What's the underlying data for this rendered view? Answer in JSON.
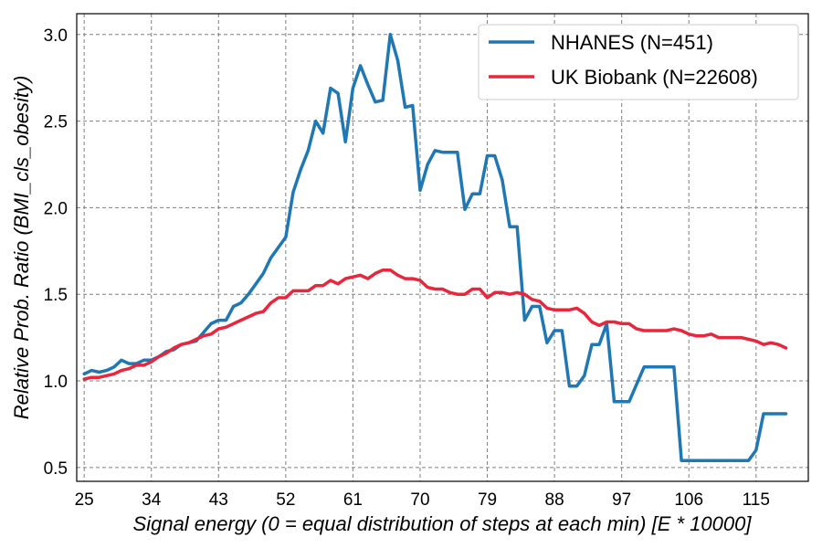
{
  "chart_data": {
    "type": "line",
    "title": "",
    "xlabel": "Signal energy (0 = equal distribution of steps at each min) [E * 10000]",
    "ylabel": "Relative Prob. Ratio (BMI_cls_obesity)",
    "xlim": [
      24,
      122
    ],
    "ylim": [
      0.42,
      3.12
    ],
    "xticks": [
      25,
      34,
      43,
      52,
      61,
      70,
      79,
      88,
      97,
      106,
      115
    ],
    "yticks": [
      0.5,
      1.0,
      1.5,
      2.0,
      2.5,
      3.0
    ],
    "ytick_labels": [
      "0.5",
      "1.0",
      "1.5",
      "2.0",
      "2.5",
      "3.0"
    ],
    "grid": true,
    "legend_position": "top-right",
    "series": [
      {
        "name": "NHANES (N=451)",
        "color": "#1f77b4",
        "x": [
          25,
          26,
          27,
          28,
          29,
          30,
          31,
          32,
          33,
          34,
          35,
          36,
          37,
          38,
          39,
          40,
          41,
          42,
          43,
          44,
          45,
          46,
          47,
          48,
          49,
          50,
          51,
          52,
          53,
          54,
          55,
          56,
          57,
          58,
          59,
          60,
          61,
          62,
          63,
          64,
          65,
          66,
          67,
          68,
          69,
          70,
          71,
          72,
          73,
          74,
          75,
          76,
          77,
          78,
          79,
          80,
          81,
          82,
          83,
          84,
          85,
          86,
          87,
          88,
          89,
          90,
          91,
          92,
          93,
          94,
          95,
          96,
          97,
          98,
          99,
          100,
          101,
          102,
          103,
          104,
          105,
          106,
          107,
          108,
          109,
          110,
          111,
          112,
          113,
          114,
          115,
          116,
          117,
          118,
          119
        ],
        "values": [
          1.04,
          1.06,
          1.05,
          1.06,
          1.08,
          1.12,
          1.1,
          1.1,
          1.12,
          1.12,
          1.14,
          1.17,
          1.18,
          1.21,
          1.22,
          1.23,
          1.28,
          1.33,
          1.35,
          1.35,
          1.43,
          1.45,
          1.5,
          1.56,
          1.62,
          1.71,
          1.77,
          1.83,
          2.09,
          2.22,
          2.33,
          2.5,
          2.43,
          2.69,
          2.66,
          2.38,
          2.69,
          2.82,
          2.71,
          2.61,
          2.62,
          3.0,
          2.85,
          2.58,
          2.59,
          2.1,
          2.25,
          2.33,
          2.32,
          2.32,
          2.32,
          1.99,
          2.08,
          2.08,
          2.3,
          2.3,
          2.16,
          1.89,
          1.89,
          1.35,
          1.43,
          1.43,
          1.22,
          1.29,
          1.29,
          0.97,
          0.97,
          1.03,
          1.21,
          1.21,
          1.33,
          0.88,
          0.88,
          0.88,
          0.98,
          1.08,
          1.08,
          1.08,
          1.08,
          1.08,
          0.54,
          0.54,
          0.54,
          0.54,
          0.54,
          0.54,
          0.54,
          0.54,
          0.54,
          0.54,
          0.6,
          0.81,
          0.81,
          0.81,
          0.81
        ]
      },
      {
        "name": "UK Biobank (N=22608)",
        "color": "#e8263c",
        "x": [
          25,
          26,
          27,
          28,
          29,
          30,
          31,
          32,
          33,
          34,
          35,
          36,
          37,
          38,
          39,
          40,
          41,
          42,
          43,
          44,
          45,
          46,
          47,
          48,
          49,
          50,
          51,
          52,
          53,
          54,
          55,
          56,
          57,
          58,
          59,
          60,
          61,
          62,
          63,
          64,
          65,
          66,
          67,
          68,
          69,
          70,
          71,
          72,
          73,
          74,
          75,
          76,
          77,
          78,
          79,
          80,
          81,
          82,
          83,
          84,
          85,
          86,
          87,
          88,
          89,
          90,
          91,
          92,
          93,
          94,
          95,
          96,
          97,
          98,
          99,
          100,
          101,
          102,
          103,
          104,
          105,
          106,
          107,
          108,
          109,
          110,
          111,
          112,
          113,
          114,
          115,
          116,
          117,
          118,
          119
        ],
        "values": [
          1.01,
          1.02,
          1.02,
          1.03,
          1.04,
          1.06,
          1.07,
          1.09,
          1.09,
          1.11,
          1.14,
          1.16,
          1.19,
          1.21,
          1.22,
          1.24,
          1.26,
          1.27,
          1.3,
          1.31,
          1.33,
          1.35,
          1.37,
          1.39,
          1.4,
          1.45,
          1.48,
          1.48,
          1.52,
          1.52,
          1.52,
          1.55,
          1.55,
          1.58,
          1.56,
          1.59,
          1.6,
          1.61,
          1.59,
          1.62,
          1.64,
          1.64,
          1.61,
          1.59,
          1.59,
          1.58,
          1.54,
          1.53,
          1.53,
          1.51,
          1.5,
          1.5,
          1.53,
          1.53,
          1.48,
          1.51,
          1.51,
          1.5,
          1.51,
          1.5,
          1.47,
          1.46,
          1.42,
          1.41,
          1.41,
          1.41,
          1.42,
          1.39,
          1.34,
          1.32,
          1.34,
          1.34,
          1.33,
          1.33,
          1.3,
          1.29,
          1.29,
          1.29,
          1.29,
          1.3,
          1.29,
          1.27,
          1.26,
          1.26,
          1.27,
          1.25,
          1.25,
          1.25,
          1.25,
          1.24,
          1.23,
          1.21,
          1.22,
          1.21,
          1.19
        ]
      }
    ]
  }
}
